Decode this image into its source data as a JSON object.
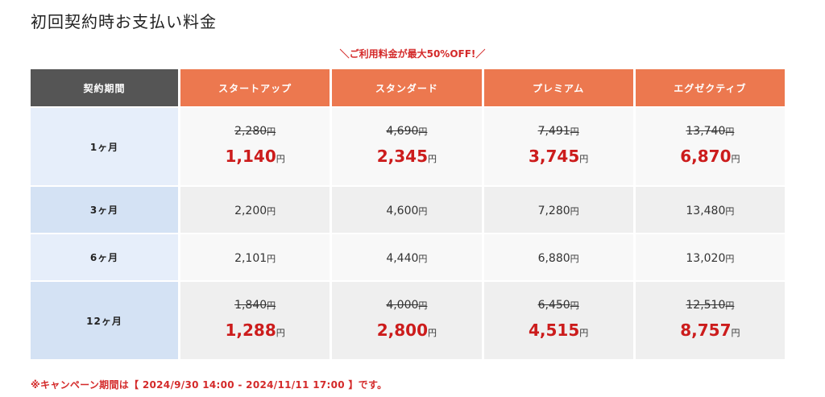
{
  "title": "初回契約時お支払い料金",
  "promo": "＼ご利用料金が最大50%OFF!／",
  "currency": "円",
  "headers": {
    "period": "契約期間",
    "plans": [
      "スタートアップ",
      "スタンダード",
      "プレミアム",
      "エグゼクティブ"
    ]
  },
  "rows": [
    {
      "period": "1ヶ月",
      "cells": [
        {
          "old": "2,280",
          "new": "1,140"
        },
        {
          "old": "4,690",
          "new": "2,345"
        },
        {
          "old": "7,491",
          "new": "3,745"
        },
        {
          "old": "13,740",
          "new": "6,870"
        }
      ]
    },
    {
      "period": "3ヶ月",
      "cells": [
        {
          "price": "2,200"
        },
        {
          "price": "4,600"
        },
        {
          "price": "7,280"
        },
        {
          "price": "13,480"
        }
      ]
    },
    {
      "period": "6ヶ月",
      "cells": [
        {
          "price": "2,101"
        },
        {
          "price": "4,440"
        },
        {
          "price": "6,880"
        },
        {
          "price": "13,020"
        }
      ]
    },
    {
      "period": "12ヶ月",
      "cells": [
        {
          "old": "1,840",
          "new": "1,288"
        },
        {
          "old": "4,000",
          "new": "2,800"
        },
        {
          "old": "6,450",
          "new": "4,515"
        },
        {
          "old": "12,510",
          "new": "8,757"
        }
      ]
    }
  ],
  "footnote": "※キャンペーン期間は【 2024/9/30 14:00 - 2024/11/11 17:00 】です。",
  "colors": {
    "header_period_bg": "#555555",
    "header_plan_bg": "#ec784f",
    "discount_red": "#cc1c1c",
    "period_cell_light": "#e6eefa",
    "period_cell_dark": "#d4e2f4"
  }
}
